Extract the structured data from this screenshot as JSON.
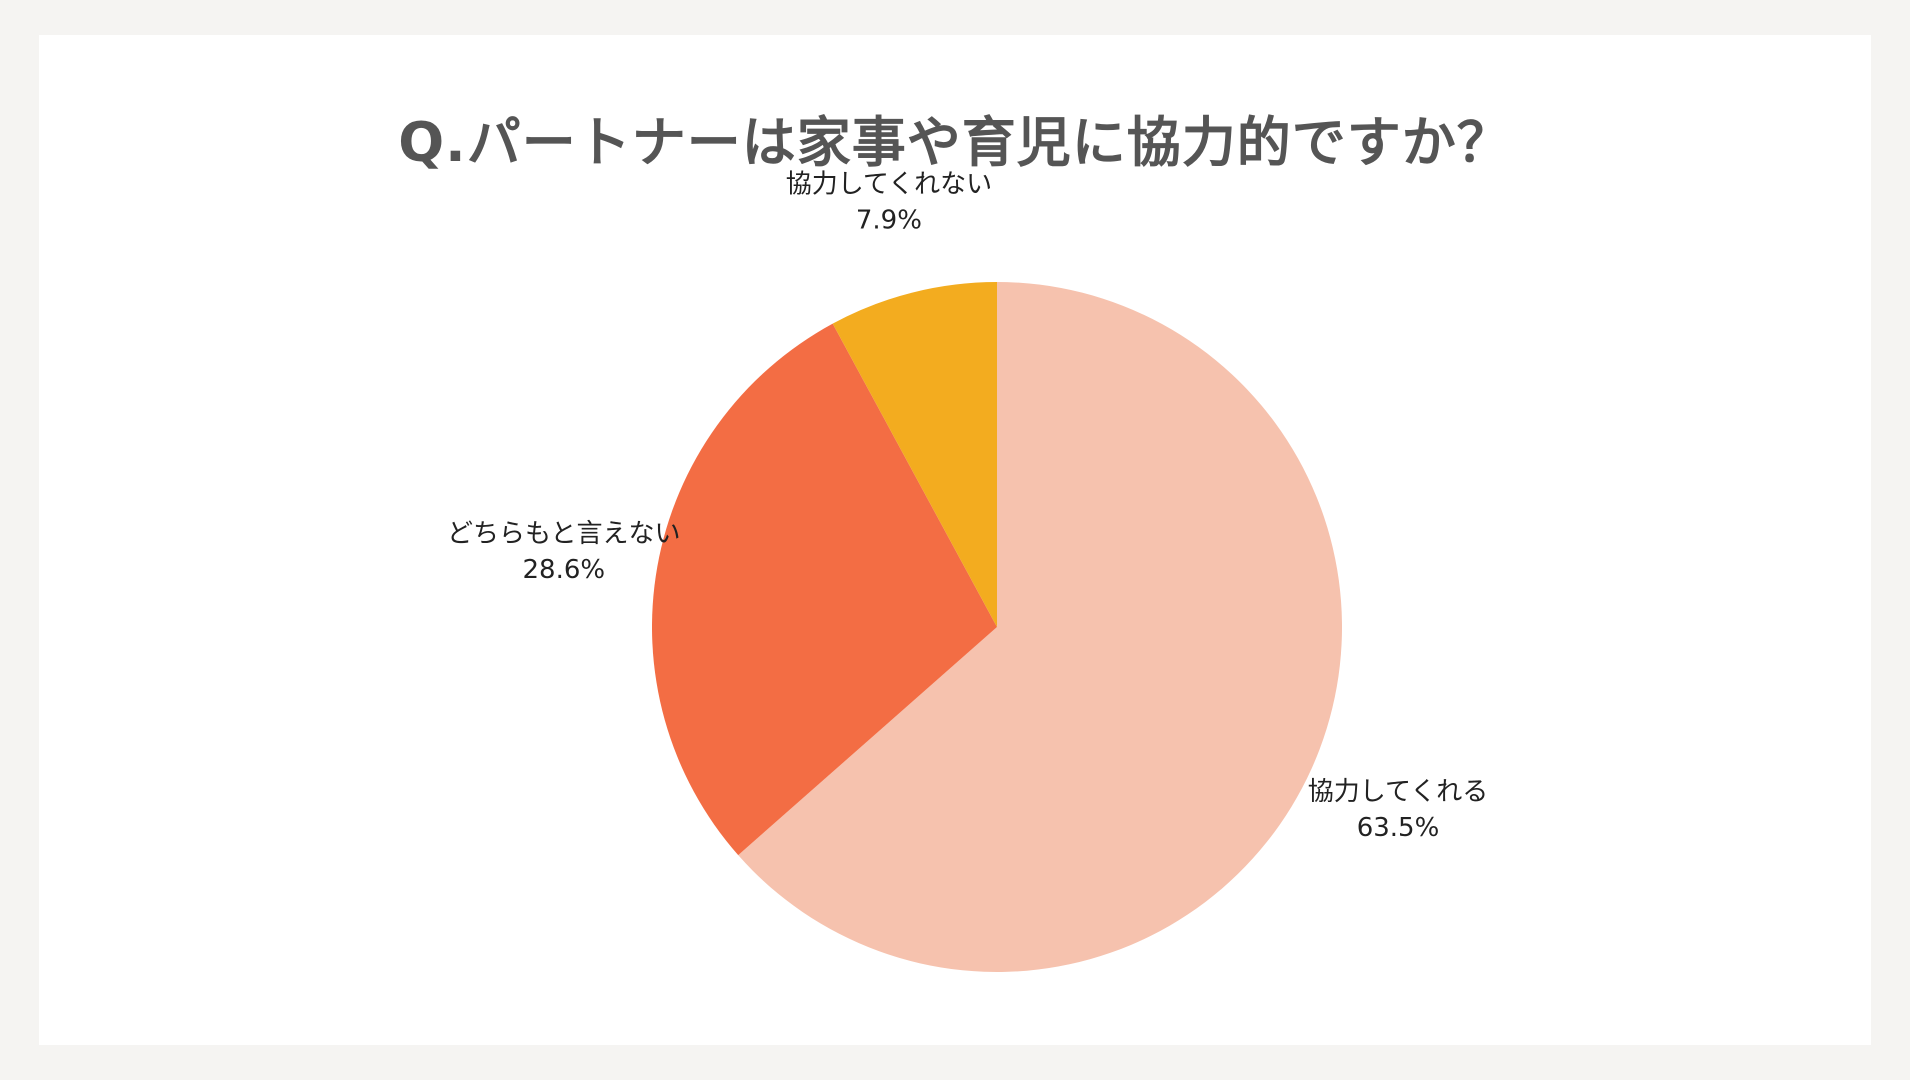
{
  "chart_data": {
    "type": "pie",
    "title": "Q.パートナーは家事や育児に協力的ですか？",
    "start_angle_deg": 0,
    "direction": "clockwise",
    "slices": [
      {
        "label": "協力してくれる",
        "value": 63.5,
        "value_label": "63.5%",
        "color": "#f6c2ae"
      },
      {
        "label": "どちらもと言えない",
        "value": 28.6,
        "value_label": "28.6%",
        "color": "#f36d44"
      },
      {
        "label": "協力してくれない",
        "value": 7.9,
        "value_label": "7.9%",
        "color": "#f3ac1f"
      }
    ]
  }
}
